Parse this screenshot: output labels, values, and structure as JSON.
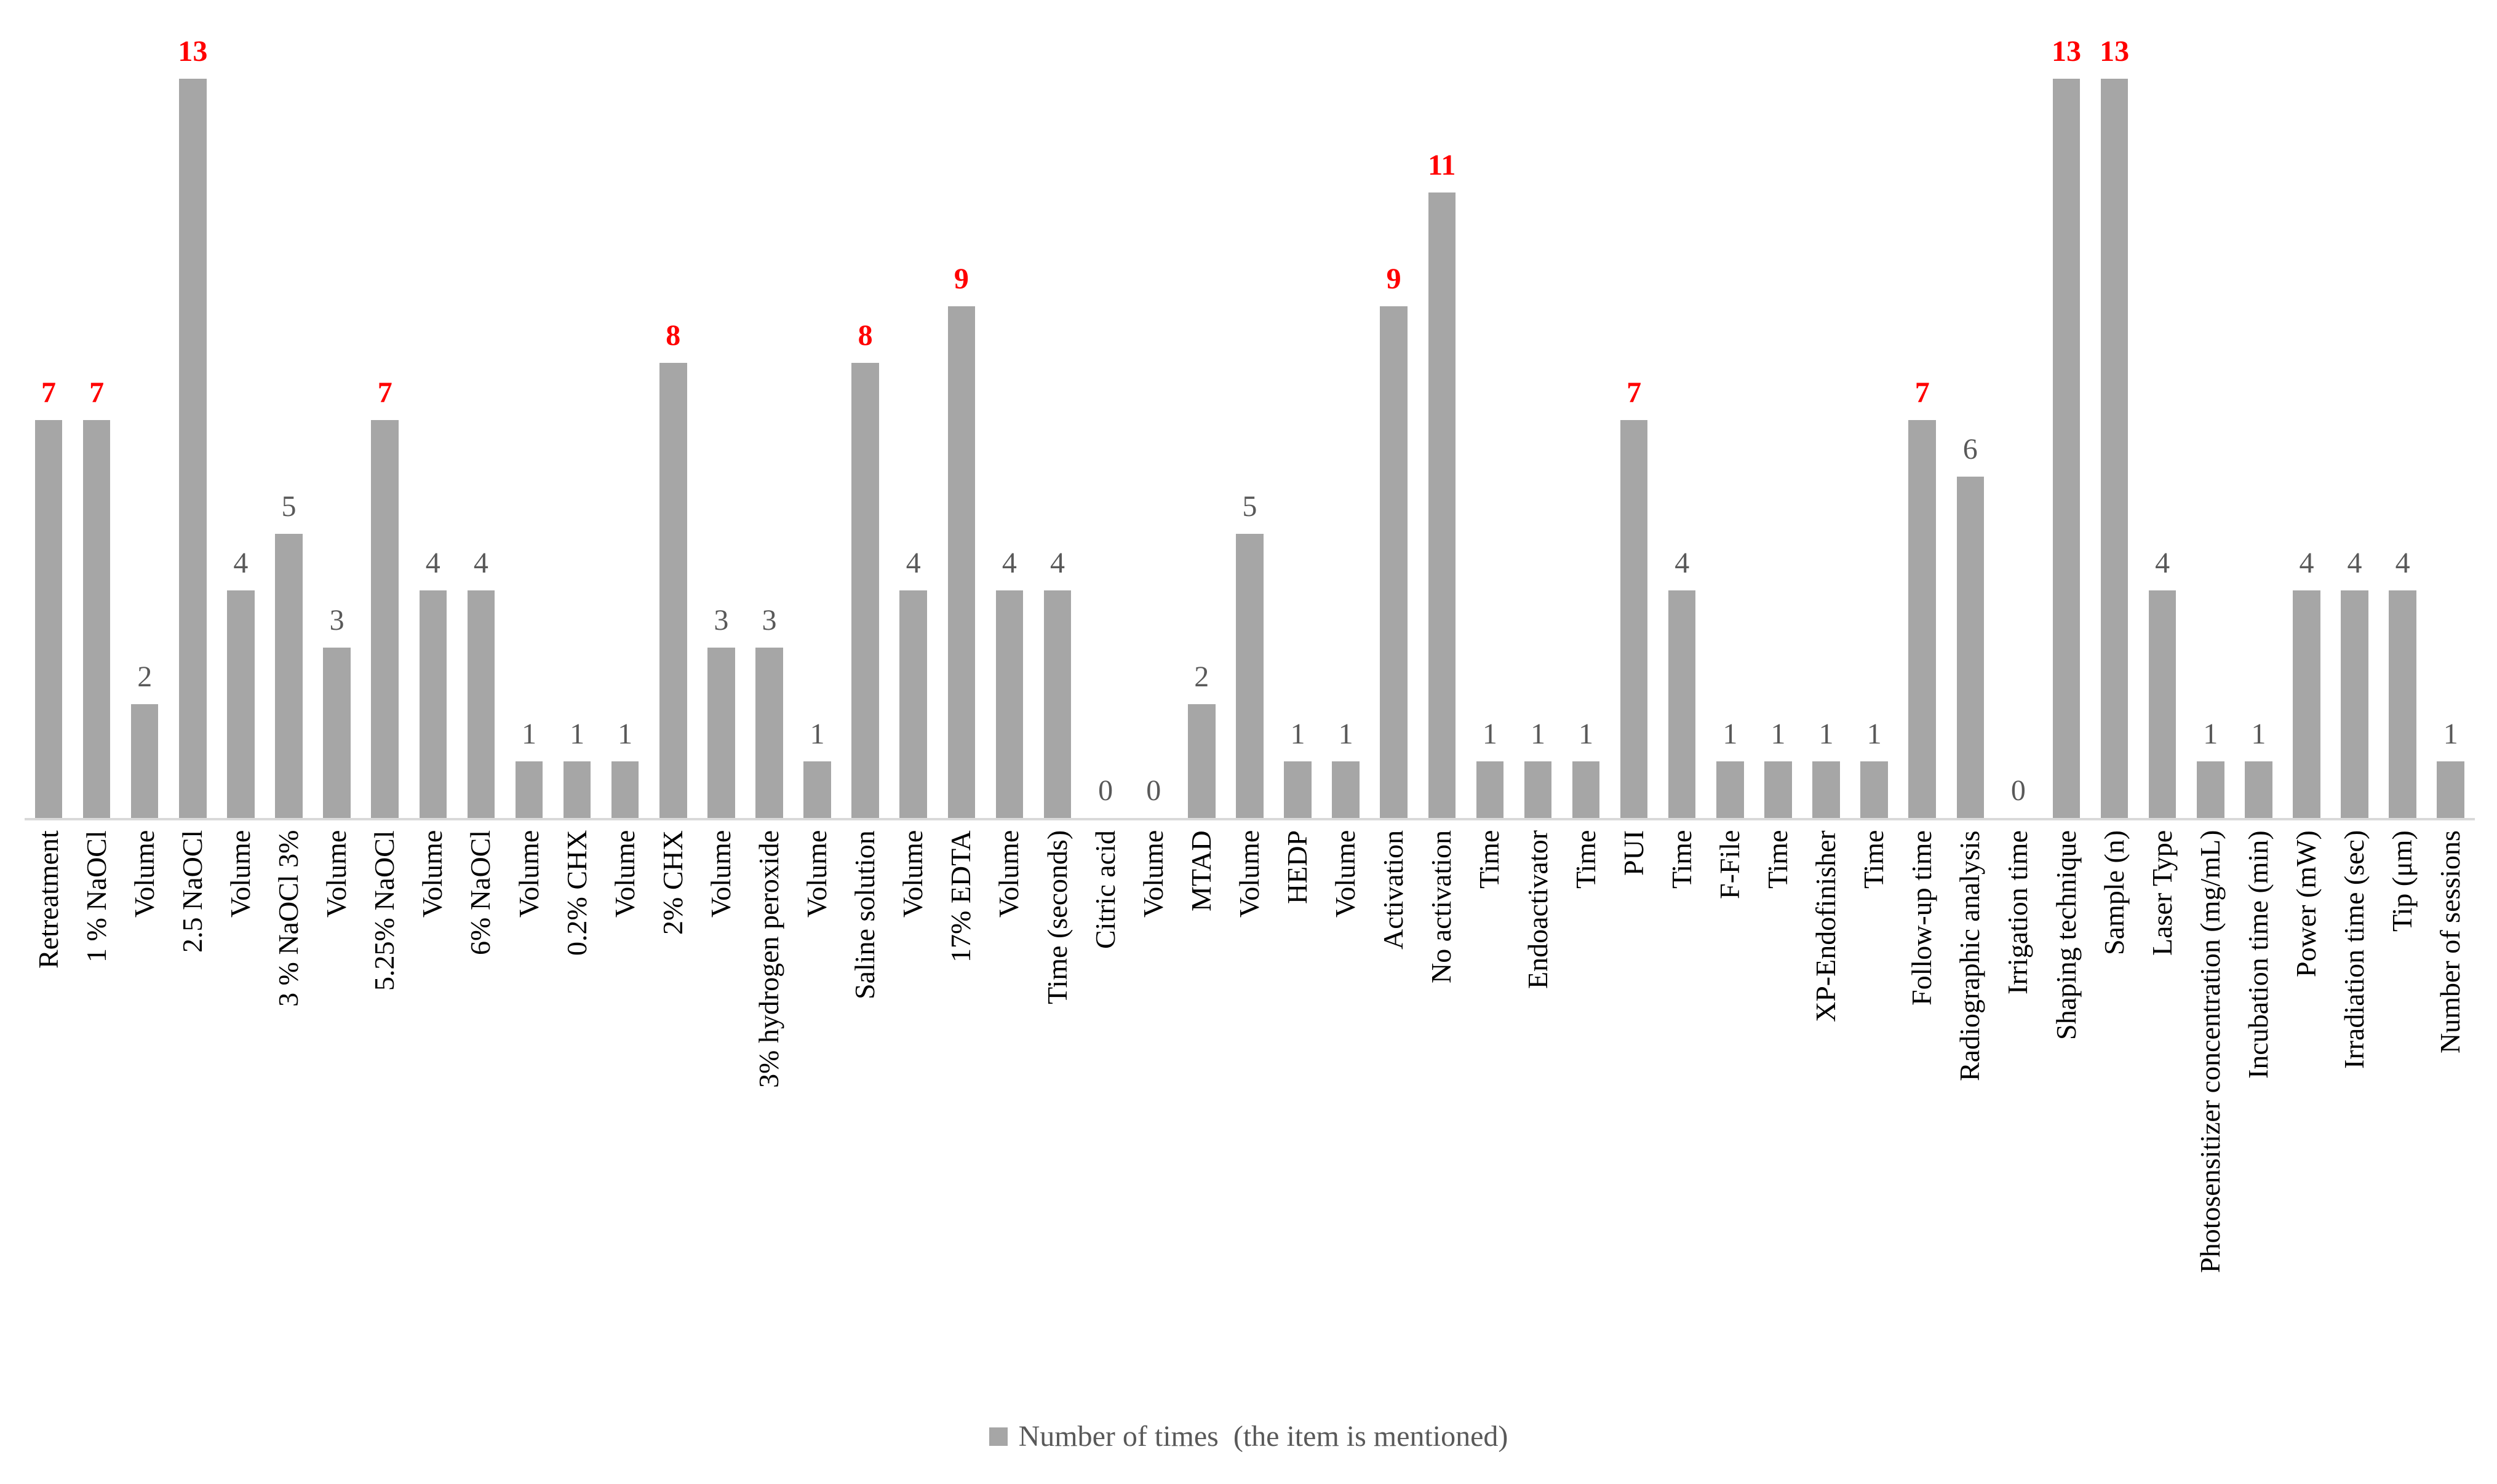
{
  "chart_data": {
    "type": "bar",
    "title": "",
    "xlabel": "",
    "ylabel": "",
    "ylim": [
      0,
      13
    ],
    "grid": false,
    "y_axis_shown": false,
    "legend_position": "bottom",
    "categories": [
      "Retreatment",
      "1 % NaOCl",
      "Volume",
      "2.5 NaOCl",
      "Volume",
      "3 % NaOCl 3%",
      "Volume",
      "5.25% NaOCl",
      "Volume",
      "6% NaOCl",
      "Volume",
      "0.2% CHX",
      "Volume",
      "2% CHX",
      "Volume",
      "3% hydrogen peroxide",
      "Volume",
      "Saline solution",
      "Volume",
      "17% EDTA",
      "Volume",
      "Time (seconds)",
      "Citric acid",
      "Volume",
      "MTAD",
      "Volume",
      "HEDP",
      "Volume",
      "Activation",
      "No activation",
      "Time",
      "Endoactivator",
      "Time",
      "PUI",
      "Time",
      "F-File",
      "Time",
      "XP-Endofinisher",
      "Time",
      "Follow-up time",
      "Radiographic analysis",
      "Irrigation time",
      "Shaping technique",
      "Sample (n)",
      "Laser Type",
      "Photosensitizer concentration (mg/mL)",
      "Incubation time (min)",
      "Power (mW)",
      "Irradiation time (sec)",
      "Tip (μm)",
      "Number of sessions"
    ],
    "values": [
      7,
      7,
      2,
      13,
      4,
      5,
      3,
      7,
      4,
      4,
      1,
      1,
      1,
      8,
      3,
      3,
      1,
      8,
      4,
      9,
      4,
      4,
      0,
      0,
      2,
      5,
      1,
      1,
      9,
      11,
      1,
      1,
      1,
      7,
      4,
      1,
      1,
      1,
      1,
      7,
      6,
      0,
      13,
      13,
      4,
      1,
      1,
      4,
      4,
      4,
      1
    ],
    "emphasized": [
      true,
      true,
      false,
      true,
      false,
      false,
      false,
      true,
      false,
      false,
      false,
      false,
      false,
      true,
      false,
      false,
      false,
      true,
      false,
      true,
      false,
      false,
      false,
      false,
      false,
      false,
      false,
      false,
      true,
      true,
      false,
      false,
      false,
      true,
      false,
      false,
      false,
      false,
      false,
      true,
      false,
      false,
      true,
      true,
      false,
      false,
      false,
      false,
      false,
      false,
      false
    ]
  },
  "legend": {
    "label": "Number of times  (the item is mentioned)"
  },
  "colors": {
    "background": "#ffffff",
    "bar": "#a6a6a6",
    "axis_line": "#d9d9d9",
    "value_label": "#595959",
    "value_label_emphasis": "#ff0000",
    "category_label": "#000000",
    "legend_text": "#595959"
  }
}
